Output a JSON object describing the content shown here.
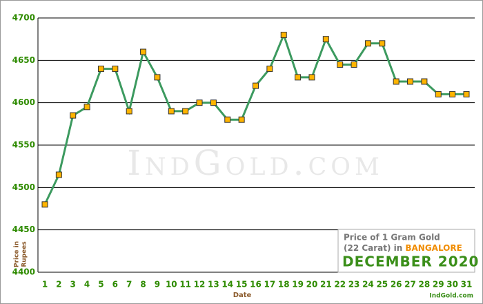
{
  "chart_data": {
    "type": "line",
    "title_lines": [
      "Price of 1 Gram Gold",
      "(22 Carat) in"
    ],
    "city": "BANGALORE",
    "period": "DECEMBER 2020",
    "source": "IndGold.com",
    "watermark": "IndGold.com",
    "x_label": "Date",
    "y_label": [
      "Price in",
      "Rupees"
    ],
    "categories": [
      "1",
      "2",
      "3",
      "4",
      "5",
      "6",
      "7",
      "8",
      "9",
      "10",
      "11",
      "12",
      "13",
      "14",
      "15",
      "16",
      "17",
      "18",
      "19",
      "20",
      "21",
      "22",
      "23",
      "24",
      "25",
      "26",
      "27",
      "28",
      "29",
      "30",
      "31"
    ],
    "series": [
      {
        "name": "Price",
        "color": "#3c9a5f",
        "marker_color": "#ffb400",
        "values": [
          4480,
          4515,
          4585,
          4595,
          4640,
          4640,
          4590,
          4660,
          4630,
          4590,
          4590,
          4600,
          4600,
          4580,
          4580,
          4620,
          4640,
          4680,
          4630,
          4630,
          4675,
          4645,
          4645,
          4670,
          4670,
          4625,
          4625,
          4625,
          4610,
          4610,
          4610
        ]
      }
    ],
    "ylim": [
      4400,
      4700
    ],
    "yticks": [
      4400,
      4450,
      4500,
      4550,
      4600,
      4650,
      4700
    ],
    "grid": true
  }
}
